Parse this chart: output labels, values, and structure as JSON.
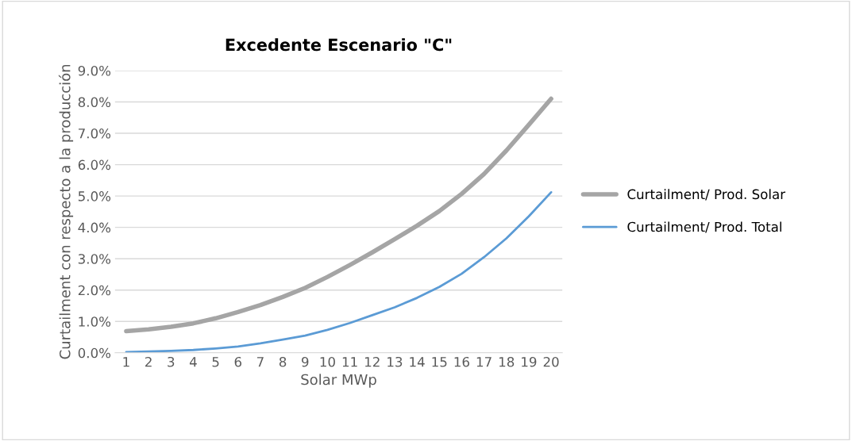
{
  "chart_data": {
    "type": "line",
    "title": "Excedente Escenario \"C\"",
    "xlabel": "Solar MWp",
    "ylabel": "Curtailment con respecto a la producción",
    "categories": [
      "1",
      "2",
      "3",
      "4",
      "5",
      "6",
      "7",
      "8",
      "9",
      "10",
      "11",
      "12",
      "13",
      "14",
      "15",
      "16",
      "17",
      "18",
      "19",
      "20"
    ],
    "series": [
      {
        "name": "Curtailment/ Prod. Solar",
        "color": "#a5a5a5",
        "values": [
          0.69,
          0.75,
          0.83,
          0.94,
          1.1,
          1.3,
          1.52,
          1.78,
          2.07,
          2.42,
          2.8,
          3.2,
          3.62,
          4.05,
          4.52,
          5.07,
          5.7,
          6.45,
          7.27,
          8.1
        ]
      },
      {
        "name": "Curtailment/ Prod. Total",
        "color": "#5b9bd5",
        "values": [
          0.02,
          0.04,
          0.06,
          0.09,
          0.14,
          0.2,
          0.3,
          0.42,
          0.55,
          0.73,
          0.95,
          1.2,
          1.45,
          1.75,
          2.1,
          2.52,
          3.05,
          3.65,
          4.35,
          5.12
        ]
      }
    ],
    "ylim": [
      0,
      9
    ],
    "yticks": [
      {
        "value": 0,
        "label": "0.0%"
      },
      {
        "value": 1,
        "label": "1.0%"
      },
      {
        "value": 2,
        "label": "2.0%"
      },
      {
        "value": 3,
        "label": "3.0%"
      },
      {
        "value": 4,
        "label": "4.0%"
      },
      {
        "value": 5,
        "label": "5.0%"
      },
      {
        "value": 6,
        "label": "6.0%"
      },
      {
        "value": 7,
        "label": "7.0%"
      },
      {
        "value": 8,
        "label": "8.0%"
      },
      {
        "value": 9,
        "label": "9.0%"
      }
    ],
    "grid": "y",
    "legend": "right",
    "marker": "none",
    "line_style": "solid"
  }
}
